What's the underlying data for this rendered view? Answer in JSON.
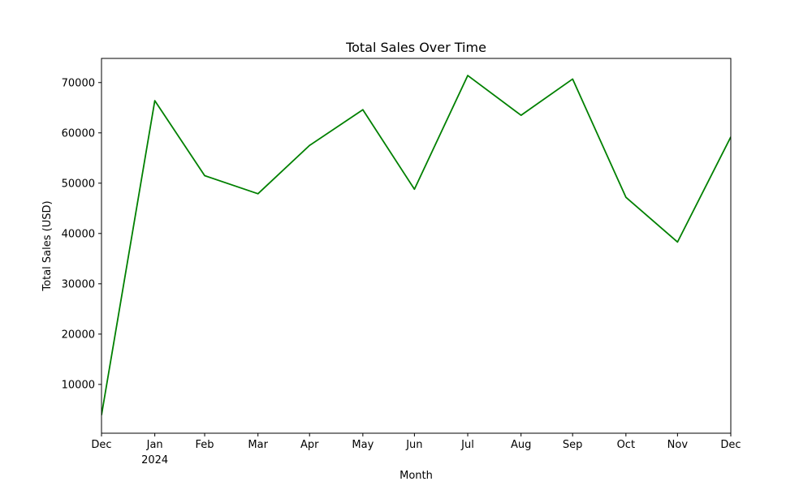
{
  "chart_data": {
    "type": "line",
    "title": "Total Sales Over Time",
    "xlabel": "Month",
    "ylabel": "Total Sales (USD)",
    "x": [
      "2023-12-31",
      "2024-01-31",
      "2024-02-29",
      "2024-03-31",
      "2024-04-30",
      "2024-05-31",
      "2024-06-30",
      "2024-07-31",
      "2024-08-31",
      "2024-09-30",
      "2024-10-31",
      "2024-11-30",
      "2024-12-31"
    ],
    "series": [
      {
        "values": [
          3900,
          66400,
          51500,
          47900,
          57500,
          64600,
          48800,
          71400,
          63500,
          70700,
          47200,
          38300,
          59200
        ],
        "color": "#008000"
      }
    ],
    "x_tick_labels": [
      "Dec",
      "Jan",
      "Feb",
      "Mar",
      "Apr",
      "May",
      "Jun",
      "Jul",
      "Aug",
      "Sep",
      "Oct",
      "Nov",
      "Dec"
    ],
    "x_tick_sublabel": {
      "index": 1,
      "text": "2024"
    },
    "y_ticks": [
      10000,
      20000,
      30000,
      40000,
      50000,
      60000,
      70000
    ],
    "ylim": [
      300,
      74800
    ],
    "grid": false,
    "legend": "none"
  }
}
